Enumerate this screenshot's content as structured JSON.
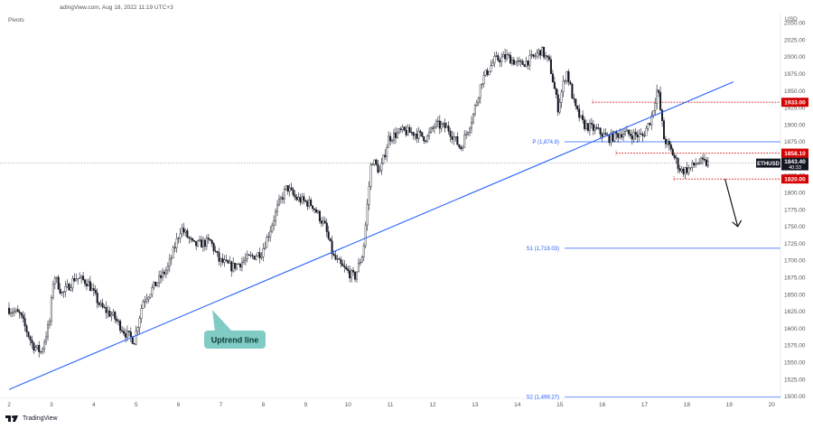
{
  "header": {
    "title": "adingView.com, Aug 18, 2022 11:19 UTC+3",
    "indicator": "Pivots",
    "currency": "USD"
  },
  "brand": {
    "name": "TradingView"
  },
  "chart_data": {
    "type": "candlestick",
    "symbol": "ETHUSD",
    "ylim": [
      1497,
      2065
    ],
    "y_ticks": [
      1500,
      1525,
      1550,
      1575,
      1600,
      1625,
      1650,
      1675,
      1700,
      1725,
      1750,
      1775,
      1800,
      1825,
      1850,
      1875,
      1900,
      1925,
      1950,
      1975,
      2000,
      2025,
      2050
    ],
    "x_ticks": [
      "2",
      "3",
      "4",
      "5",
      "6",
      "7",
      "8",
      "9",
      "10",
      "11",
      "12",
      "13",
      "14",
      "15",
      "16",
      "17",
      "18",
      "19",
      "20"
    ],
    "price_path": [
      [
        2.0,
        1630
      ],
      [
        2.3,
        1620
      ],
      [
        2.6,
        1575
      ],
      [
        2.8,
        1565
      ],
      [
        3.0,
        1610
      ],
      [
        3.1,
        1680
      ],
      [
        3.3,
        1650
      ],
      [
        3.6,
        1675
      ],
      [
        3.9,
        1668
      ],
      [
        4.2,
        1632
      ],
      [
        4.5,
        1618
      ],
      [
        4.8,
        1592
      ],
      [
        5.0,
        1582
      ],
      [
        5.2,
        1640
      ],
      [
        5.5,
        1665
      ],
      [
        5.8,
        1690
      ],
      [
        6.1,
        1748
      ],
      [
        6.4,
        1722
      ],
      [
        6.8,
        1728
      ],
      [
        7.0,
        1700
      ],
      [
        7.3,
        1690
      ],
      [
        7.6,
        1700
      ],
      [
        8.0,
        1712
      ],
      [
        8.2,
        1745
      ],
      [
        8.4,
        1782
      ],
      [
        8.6,
        1808
      ],
      [
        8.8,
        1792
      ],
      [
        9.2,
        1782
      ],
      [
        9.5,
        1750
      ],
      [
        9.7,
        1705
      ],
      [
        9.9,
        1690
      ],
      [
        10.2,
        1675
      ],
      [
        10.4,
        1712
      ],
      [
        10.6,
        1850
      ],
      [
        10.8,
        1830
      ],
      [
        11.0,
        1880
      ],
      [
        11.3,
        1890
      ],
      [
        11.6,
        1888
      ],
      [
        11.9,
        1880
      ],
      [
        12.1,
        1900
      ],
      [
        12.4,
        1895
      ],
      [
        12.7,
        1865
      ],
      [
        13.0,
        1915
      ],
      [
        13.2,
        1965
      ],
      [
        13.5,
        1995
      ],
      [
        13.8,
        2000
      ],
      [
        14.1,
        1988
      ],
      [
        14.4,
        1998
      ],
      [
        14.6,
        2010
      ],
      [
        14.8,
        1990
      ],
      [
        15.0,
        1925
      ],
      [
        15.2,
        1980
      ],
      [
        15.4,
        1925
      ],
      [
        15.6,
        1900
      ],
      [
        15.9,
        1892
      ],
      [
        16.2,
        1880
      ],
      [
        16.5,
        1888
      ],
      [
        16.8,
        1885
      ],
      [
        17.0,
        1883
      ],
      [
        17.2,
        1910
      ],
      [
        17.35,
        1955
      ],
      [
        17.5,
        1880
      ],
      [
        17.7,
        1858
      ],
      [
        17.9,
        1832
      ],
      [
        18.1,
        1835
      ],
      [
        18.3,
        1845
      ],
      [
        18.5,
        1843
      ]
    ],
    "last_price": 1843.4,
    "last_price_timer": "40:33",
    "uptrend_line": [
      [
        2.0,
        1510
      ],
      [
        19.1,
        1963
      ]
    ],
    "uptrend_label": "Uptrend line",
    "pivot_lines": [
      {
        "label": "P (1,874.8)",
        "value": 1874.8
      },
      {
        "label": "S1 (1,718.03)",
        "value": 1718.03
      },
      {
        "label": "S2 (1,499.27)",
        "value": 1499.27
      }
    ],
    "level_lines": [
      {
        "value": 1933.0,
        "label": "1933.00"
      },
      {
        "value": 1858.1,
        "label": "1858.10"
      },
      {
        "value": 1820.0,
        "label": "1820.00"
      }
    ],
    "projection_arrow": {
      "from": [
        18.9,
        1820
      ],
      "to": [
        19.2,
        1750
      ]
    },
    "colors": {
      "candle": "#131722",
      "uptrend": "#2962ff",
      "pivot": "#2962ff",
      "level": "#d50000",
      "callout": "#80cbc4",
      "axis_text": "#555555"
    }
  }
}
